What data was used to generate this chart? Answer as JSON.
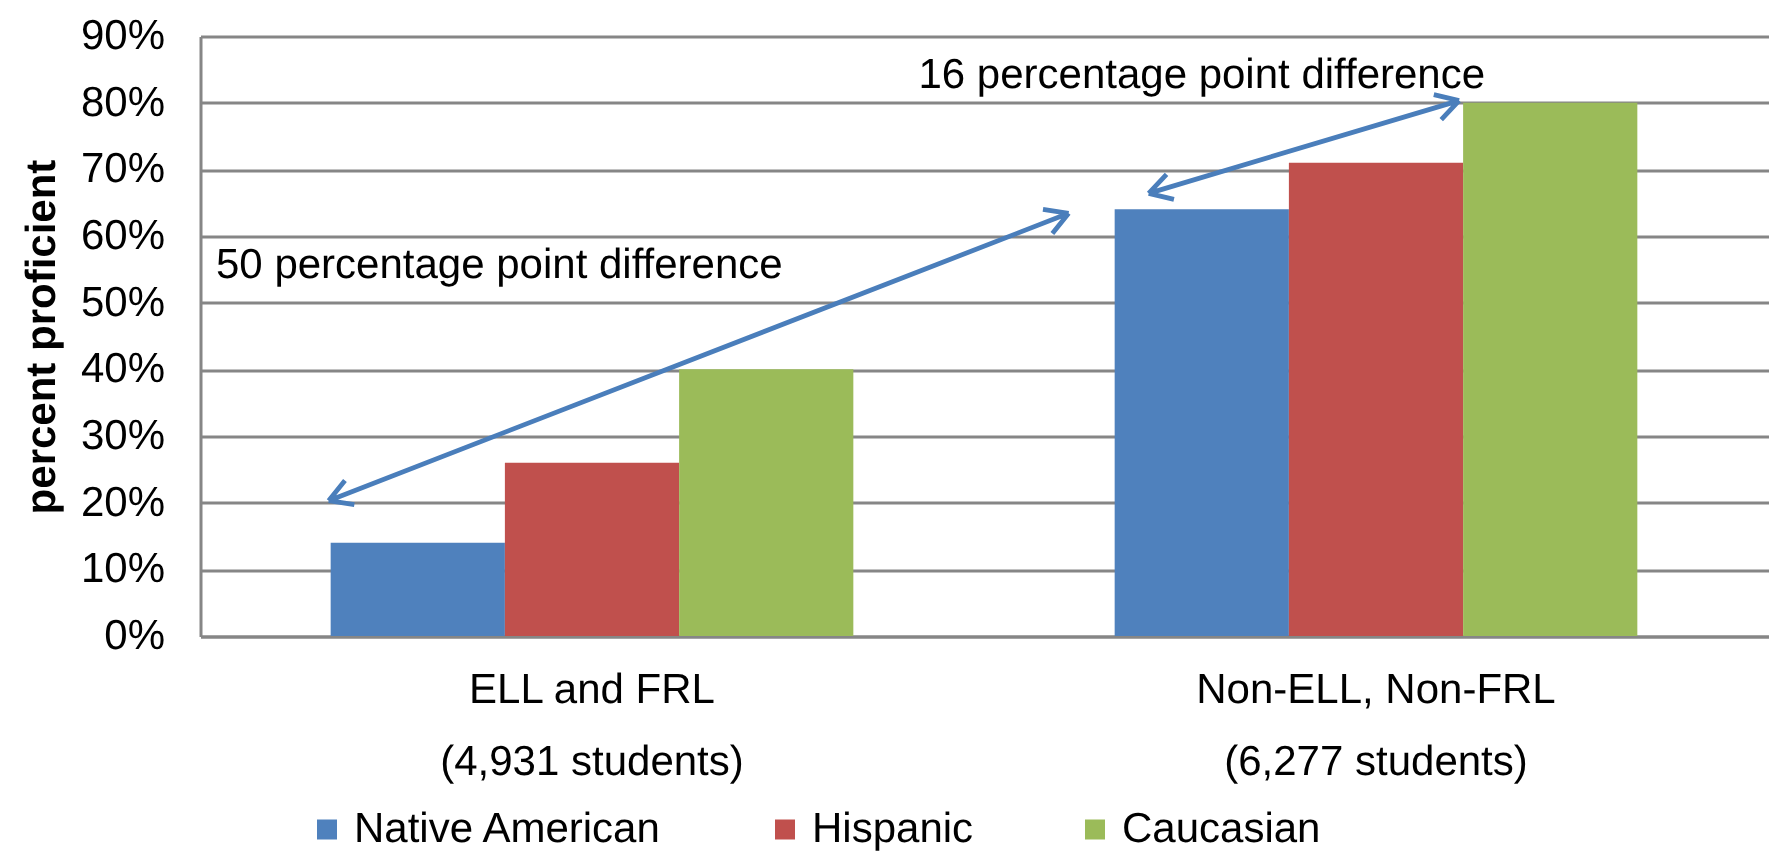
{
  "chart_data": {
    "type": "bar",
    "ylabel": "percent proficient",
    "categories": [
      "ELL and FRL\n(4,931 students)",
      "Non-ELL, Non-FRL\n(6,277 students)"
    ],
    "series": [
      {
        "name": "Native American",
        "color": "#4f81bd",
        "values": [
          14,
          64
        ]
      },
      {
        "name": "Hispanic",
        "color": "#c0504d",
        "values": [
          26,
          71
        ]
      },
      {
        "name": "Caucasian",
        "color": "#9bbb59",
        "values": [
          40,
          80
        ]
      }
    ],
    "ylim": [
      0,
      90
    ],
    "yticks": [
      {
        "value": 0,
        "label": "0%"
      },
      {
        "value": 10,
        "label": "10%"
      },
      {
        "value": 20,
        "label": "20%"
      },
      {
        "value": 30,
        "label": "30%"
      },
      {
        "value": 40,
        "label": "40%"
      },
      {
        "value": 50,
        "label": "50%"
      },
      {
        "value": 60,
        "label": "60%"
      },
      {
        "value": 70,
        "label": "70%"
      },
      {
        "value": 80,
        "label": "80%"
      },
      {
        "value": 90,
        "label": "90%"
      }
    ],
    "grid": "y",
    "legend": "bottom",
    "annotations": [
      "50 percentage point difference",
      "16 percentage point difference"
    ]
  }
}
